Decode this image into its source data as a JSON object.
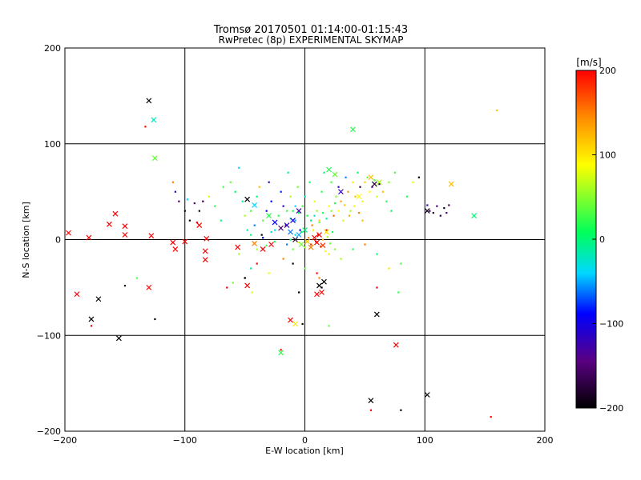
{
  "chart_data": {
    "type": "scatter",
    "title": "Tromsø 20170501 01:14:00-01:15:43",
    "subtitle": "RwPretec (8p) EXPERIMENTAL SKYMAP",
    "xlabel": "E-W location [km]",
    "ylabel": "N-S location [km]",
    "xlim": [
      -200,
      200
    ],
    "ylim": [
      -200,
      200
    ],
    "xticks": [
      -200,
      -100,
      0,
      100,
      200
    ],
    "yticks": [
      -200,
      -100,
      0,
      100,
      200
    ],
    "grid": true,
    "colorbar": {
      "label": "[m/s]",
      "range": [
        -200,
        200
      ],
      "ticks": [
        200,
        100,
        0,
        -100,
        -200
      ],
      "colors": [
        "#000000",
        "#5a0082",
        "#0000ff",
        "#00d8ff",
        "#00ff5a",
        "#ffff00",
        "#ff8c00",
        "#ff0000"
      ]
    },
    "points_small": [
      [
        -125,
        85,
        20
      ],
      [
        -133,
        118,
        200
      ],
      [
        -110,
        60,
        150
      ],
      [
        -108,
        50,
        -120
      ],
      [
        -105,
        40,
        -160
      ],
      [
        -100,
        30,
        -180
      ],
      [
        -98,
        42,
        -40
      ],
      [
        -96,
        20,
        -200
      ],
      [
        -92,
        38,
        -150
      ],
      [
        -90,
        18,
        200
      ],
      [
        -88,
        30,
        -190
      ],
      [
        -85,
        40,
        -170
      ],
      [
        -80,
        45,
        70
      ],
      [
        -75,
        35,
        20
      ],
      [
        -70,
        20,
        0
      ],
      [
        -68,
        55,
        30
      ],
      [
        -62,
        60,
        40
      ],
      [
        -58,
        50,
        10
      ],
      [
        -55,
        75,
        -40
      ],
      [
        -52,
        40,
        -10
      ],
      [
        -50,
        25,
        60
      ],
      [
        -48,
        10,
        -20
      ],
      [
        -45,
        30,
        30
      ],
      [
        -42,
        15,
        -60
      ],
      [
        -40,
        45,
        0
      ],
      [
        -38,
        55,
        120
      ],
      [
        -36,
        5,
        -200
      ],
      [
        -35,
        20,
        40
      ],
      [
        -32,
        30,
        -100
      ],
      [
        -30,
        60,
        -120
      ],
      [
        -28,
        40,
        -90
      ],
      [
        -25,
        10,
        -30
      ],
      [
        -22,
        25,
        20
      ],
      [
        -20,
        50,
        -80
      ],
      [
        -18,
        35,
        -110
      ],
      [
        -16,
        15,
        -140
      ],
      [
        -14,
        70,
        -20
      ],
      [
        -12,
        45,
        60
      ],
      [
        -10,
        30,
        10
      ],
      [
        -8,
        20,
        -50
      ],
      [
        -6,
        55,
        40
      ],
      [
        -4,
        10,
        -100
      ],
      [
        -2,
        35,
        30
      ],
      [
        0,
        45,
        -30
      ],
      [
        2,
        25,
        20
      ],
      [
        4,
        60,
        10
      ],
      [
        6,
        15,
        150
      ],
      [
        8,
        40,
        80
      ],
      [
        10,
        30,
        50
      ],
      [
        12,
        20,
        110
      ],
      [
        14,
        50,
        20
      ],
      [
        16,
        70,
        0
      ],
      [
        18,
        10,
        200
      ],
      [
        20,
        35,
        90
      ],
      [
        22,
        60,
        30
      ],
      [
        24,
        25,
        160
      ],
      [
        26,
        45,
        50
      ],
      [
        28,
        55,
        -120
      ],
      [
        30,
        40,
        130
      ],
      [
        32,
        20,
        70
      ],
      [
        34,
        65,
        -60
      ],
      [
        36,
        50,
        140
      ],
      [
        38,
        30,
        60
      ],
      [
        40,
        60,
        100
      ],
      [
        42,
        45,
        120
      ],
      [
        44,
        70,
        0
      ],
      [
        46,
        55,
        -170
      ],
      [
        48,
        40,
        80
      ],
      [
        50,
        60,
        110
      ],
      [
        52,
        65,
        40
      ],
      [
        54,
        50,
        90
      ],
      [
        56,
        55,
        -140
      ],
      [
        58,
        62,
        30
      ],
      [
        60,
        45,
        70
      ],
      [
        62,
        58,
        -180
      ],
      [
        65,
        50,
        120
      ],
      [
        68,
        40,
        20
      ],
      [
        70,
        60,
        50
      ],
      [
        72,
        30,
        10
      ],
      [
        -15,
        -5,
        -60
      ],
      [
        -12,
        0,
        20
      ],
      [
        -10,
        -10,
        40
      ],
      [
        -8,
        5,
        -30
      ],
      [
        -5,
        -3,
        80
      ],
      [
        -3,
        8,
        0
      ],
      [
        0,
        -8,
        60
      ],
      [
        3,
        2,
        150
      ],
      [
        5,
        -5,
        180
      ],
      [
        7,
        10,
        100
      ],
      [
        9,
        -2,
        190
      ],
      [
        11,
        5,
        200
      ],
      [
        13,
        -7,
        170
      ],
      [
        15,
        0,
        130
      ],
      [
        17,
        -12,
        90
      ],
      [
        19,
        3,
        60
      ],
      [
        21,
        -4,
        40
      ],
      [
        23,
        8,
        10
      ],
      [
        25,
        -10,
        50
      ],
      [
        -20,
        12,
        -80
      ],
      [
        -25,
        -2,
        20
      ],
      [
        -28,
        8,
        -40
      ],
      [
        -32,
        -6,
        30
      ],
      [
        -35,
        2,
        -90
      ],
      [
        -40,
        -10,
        60
      ],
      [
        -45,
        5,
        0
      ],
      [
        -18,
        -20,
        150
      ],
      [
        -10,
        -25,
        -200
      ],
      [
        0,
        -30,
        40
      ],
      [
        10,
        -35,
        200
      ],
      [
        20,
        -15,
        100
      ],
      [
        30,
        -20,
        60
      ],
      [
        40,
        -10,
        20
      ],
      [
        50,
        -5,
        150
      ],
      [
        60,
        -15,
        0
      ],
      [
        70,
        -30,
        100
      ],
      [
        80,
        -25,
        30
      ],
      [
        -30,
        -35,
        80
      ],
      [
        -40,
        -25,
        200
      ],
      [
        -50,
        -40,
        -150
      ],
      [
        -60,
        -45,
        40
      ],
      [
        -65,
        -50,
        200
      ],
      [
        -55,
        -15,
        60
      ],
      [
        -45,
        -30,
        -10
      ],
      [
        5,
        20,
        0
      ],
      [
        8,
        25,
        -30
      ],
      [
        12,
        18,
        40
      ],
      [
        15,
        28,
        20
      ],
      [
        18,
        22,
        -10
      ],
      [
        -5,
        28,
        10
      ],
      [
        -8,
        35,
        -40
      ],
      [
        -12,
        22,
        0
      ],
      [
        -15,
        30,
        30
      ],
      [
        22,
        30,
        50
      ],
      [
        25,
        38,
        20
      ],
      [
        28,
        30,
        90
      ],
      [
        33,
        36,
        110
      ],
      [
        37,
        25,
        130
      ],
      [
        41,
        35,
        80
      ],
      [
        45,
        28,
        150
      ],
      [
        48,
        20,
        120
      ],
      [
        104,
        30,
        -160
      ],
      [
        107,
        28,
        -180
      ],
      [
        110,
        35,
        -150
      ],
      [
        113,
        25,
        -170
      ],
      [
        116,
        33,
        -190
      ],
      [
        118,
        28,
        -140
      ],
      [
        120,
        36,
        -160
      ],
      [
        102,
        36,
        -120
      ],
      [
        95,
        65,
        -200
      ],
      [
        90,
        60,
        80
      ],
      [
        85,
        45,
        20
      ],
      [
        75,
        70,
        30
      ],
      [
        -5,
        -55,
        -200
      ],
      [
        12,
        -40,
        150
      ],
      [
        14,
        -50,
        -190
      ],
      [
        -2,
        -88,
        -200
      ],
      [
        60,
        -50,
        200
      ],
      [
        78,
        -55,
        20
      ],
      [
        -150,
        -48,
        -200
      ],
      [
        -140,
        -40,
        30
      ],
      [
        -125,
        -83,
        -200
      ],
      [
        -178,
        -90,
        200
      ],
      [
        -20,
        -115,
        200
      ],
      [
        20,
        -90,
        40
      ],
      [
        55,
        -178,
        200
      ],
      [
        80,
        -178,
        -200
      ],
      [
        155,
        -185,
        200
      ],
      [
        160,
        135,
        120
      ],
      [
        -50,
        -40,
        -200
      ],
      [
        -44,
        -55,
        80
      ]
    ],
    "points_x": [
      [
        -130,
        145,
        -200
      ],
      [
        -126,
        125,
        -20
      ],
      [
        -125,
        85,
        40
      ],
      [
        -197,
        7,
        200
      ],
      [
        -180,
        2,
        200
      ],
      [
        -163,
        16,
        200
      ],
      [
        -158,
        27,
        200
      ],
      [
        -150,
        14,
        200
      ],
      [
        -150,
        5,
        200
      ],
      [
        -128,
        4,
        200
      ],
      [
        -110,
        -3,
        200
      ],
      [
        -108,
        -10,
        200
      ],
      [
        -100,
        -2,
        200
      ],
      [
        -88,
        15,
        200
      ],
      [
        -82,
        1,
        200
      ],
      [
        -83,
        -12,
        200
      ],
      [
        -83,
        -21,
        200
      ],
      [
        -56,
        -8,
        200
      ],
      [
        -48,
        -48,
        200
      ],
      [
        -48,
        42,
        -200
      ],
      [
        -42,
        36,
        -40
      ],
      [
        -30,
        25,
        20
      ],
      [
        -25,
        18,
        -90
      ],
      [
        -20,
        12,
        -150
      ],
      [
        -15,
        15,
        -120
      ],
      [
        -12,
        8,
        -60
      ],
      [
        -10,
        20,
        -100
      ],
      [
        -8,
        0,
        -180
      ],
      [
        -5,
        5,
        -50
      ],
      [
        -3,
        -5,
        40
      ],
      [
        0,
        10,
        0
      ],
      [
        2,
        -2,
        120
      ],
      [
        5,
        -8,
        150
      ],
      [
        8,
        2,
        200
      ],
      [
        10,
        -3,
        200
      ],
      [
        12,
        5,
        200
      ],
      [
        15,
        -6,
        180
      ],
      [
        18,
        8,
        100
      ],
      [
        -28,
        -5,
        200
      ],
      [
        -35,
        -10,
        200
      ],
      [
        -42,
        -4,
        150
      ],
      [
        20,
        73,
        20
      ],
      [
        25,
        68,
        40
      ],
      [
        40,
        115,
        20
      ],
      [
        55,
        65,
        120
      ],
      [
        58,
        58,
        -180
      ],
      [
        45,
        45,
        90
      ],
      [
        62,
        60,
        60
      ],
      [
        30,
        50,
        -120
      ],
      [
        -5,
        30,
        -130
      ],
      [
        122,
        58,
        120
      ],
      [
        141,
        25,
        0
      ],
      [
        102,
        30,
        -190
      ],
      [
        -190,
        -57,
        200
      ],
      [
        -172,
        -62,
        -200
      ],
      [
        -178,
        -83,
        -200
      ],
      [
        -155,
        -103,
        -200
      ],
      [
        -130,
        -50,
        200
      ],
      [
        -12,
        -84,
        200
      ],
      [
        -20,
        -118,
        20
      ],
      [
        -8,
        -88,
        100
      ],
      [
        12,
        -48,
        -200
      ],
      [
        16,
        -44,
        -200
      ],
      [
        10,
        -57,
        200
      ],
      [
        14,
        -55,
        200
      ],
      [
        60,
        -78,
        -200
      ],
      [
        76,
        -110,
        200
      ],
      [
        55,
        -168,
        -200
      ],
      [
        102,
        -162,
        -200
      ]
    ]
  }
}
